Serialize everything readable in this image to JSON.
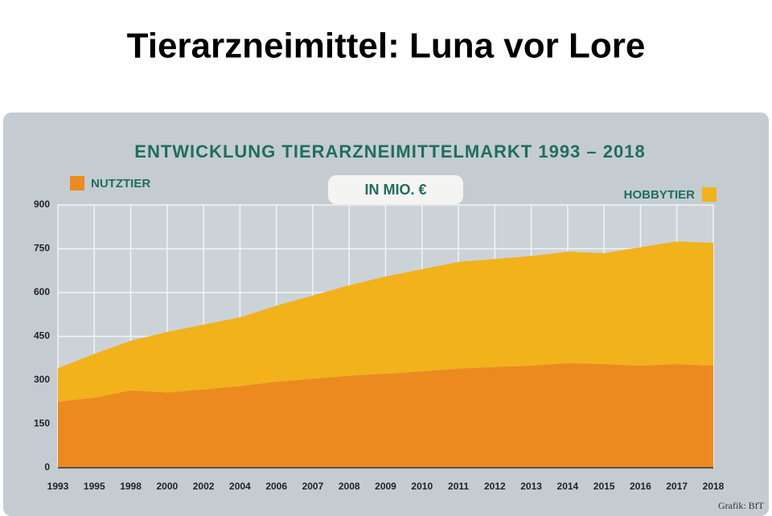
{
  "headline": "Tierarzneimittel: Luna vor Lore",
  "chart_data": {
    "type": "stacked-area",
    "title": "ENTWICKLUNG TIERARZNEIMITTELMARKT 1993 – 2018",
    "subtitle": "IN MIO. €",
    "source": "Grafik: BfT",
    "categories": [
      "1993",
      "1995",
      "1998",
      "2000",
      "2002",
      "2004",
      "2006",
      "2007",
      "2008",
      "2009",
      "2010",
      "2011",
      "2012",
      "2013",
      "2014",
      "2015",
      "2016",
      "2017",
      "2018"
    ],
    "series": [
      {
        "name": "NUTZTIER",
        "color": "#ec8a1f",
        "values": [
          226,
          240,
          265,
          258,
          268,
          280,
          295,
          305,
          315,
          322,
          330,
          340,
          345,
          350,
          358,
          355,
          350,
          355,
          350
        ]
      },
      {
        "name": "HOBBYTIER",
        "color": "#f1b21c",
        "values": [
          115,
          150,
          170,
          207,
          222,
          235,
          260,
          285,
          310,
          333,
          350,
          365,
          370,
          375,
          382,
          380,
          405,
          420,
          420
        ]
      }
    ],
    "ylim": [
      0,
      900
    ],
    "yticks": [
      0,
      150,
      300,
      450,
      600,
      750,
      900
    ],
    "grid": true
  }
}
